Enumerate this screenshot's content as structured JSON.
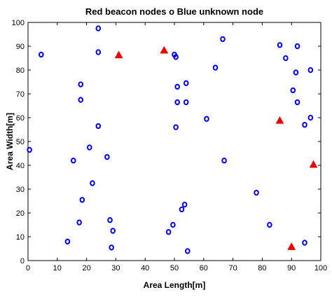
{
  "chart_data": {
    "type": "scatter",
    "title": "Red beacon nodes o Blue unknown node",
    "xlabel": "Area Length[m]",
    "ylabel": "Area Width[m]",
    "xlim": [
      0,
      100
    ],
    "ylim": [
      0,
      100
    ],
    "x_ticks": [
      "0",
      "10",
      "20",
      "30",
      "40",
      "50",
      "60",
      "70",
      "80",
      "90",
      "100"
    ],
    "y_ticks": [
      "0",
      "10",
      "20",
      "30",
      "40",
      "50",
      "60",
      "70",
      "80",
      "90",
      "100"
    ],
    "grid": false,
    "series": [
      {
        "marker": "circle",
        "color": "#0000ee",
        "points": [
          [
            24,
            97.5
          ],
          [
            4.5,
            86.5
          ],
          [
            24,
            87.5
          ],
          [
            50,
            86.5
          ],
          [
            50.5,
            85.5
          ],
          [
            66.5,
            93
          ],
          [
            64,
            81
          ],
          [
            18,
            74
          ],
          [
            54,
            74.5
          ],
          [
            51,
            73
          ],
          [
            18,
            67.5
          ],
          [
            51,
            66.5
          ],
          [
            54,
            66.5
          ],
          [
            24,
            56.5
          ],
          [
            50.5,
            56
          ],
          [
            61,
            59.5
          ],
          [
            0.5,
            46.5
          ],
          [
            21,
            47.5
          ],
          [
            27,
            43.5
          ],
          [
            15.5,
            42
          ],
          [
            67,
            42
          ],
          [
            22,
            32.5
          ],
          [
            18.5,
            25.5
          ],
          [
            53.5,
            23.5
          ],
          [
            52.5,
            21.5
          ],
          [
            17.5,
            16
          ],
          [
            28,
            17
          ],
          [
            29,
            12.5
          ],
          [
            49.5,
            15
          ],
          [
            48,
            12
          ],
          [
            13.5,
            8
          ],
          [
            28.5,
            5.5
          ],
          [
            54.5,
            4
          ],
          [
            86,
            90.5
          ],
          [
            92,
            90
          ],
          [
            96.5,
            80
          ],
          [
            88,
            85
          ],
          [
            91.5,
            79
          ],
          [
            90.5,
            71.5
          ],
          [
            92,
            66.5
          ],
          [
            96.5,
            60
          ],
          [
            94.5,
            57
          ],
          [
            78,
            28.5
          ],
          [
            82.5,
            15
          ],
          [
            94.5,
            7.5
          ]
        ]
      },
      {
        "marker": "triangle",
        "color": "#ee0000",
        "points": [
          [
            31,
            86.5
          ],
          [
            46.5,
            88.5
          ],
          [
            86,
            59
          ],
          [
            97.5,
            40.5
          ],
          [
            90,
            6
          ]
        ]
      }
    ]
  }
}
